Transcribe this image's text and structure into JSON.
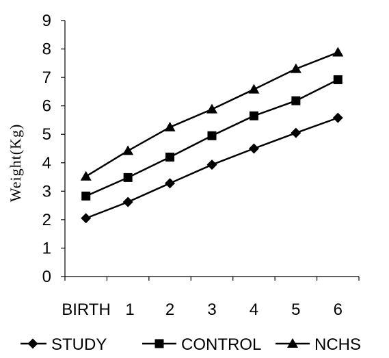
{
  "chart_data": {
    "type": "line",
    "title": "",
    "xlabel": "",
    "ylabel": "Weight(Kg)",
    "categories": [
      "BIRTH",
      "1",
      "2",
      "3",
      "4",
      "5",
      "6"
    ],
    "ylim": [
      0,
      9
    ],
    "yticks": [
      "0",
      "1",
      "2",
      "3",
      "4",
      "5",
      "6",
      "7",
      "8",
      "9"
    ],
    "grid": false,
    "legend_position": "bottom",
    "series": [
      {
        "name": "STUDY",
        "marker": "diamond",
        "values": [
          2.05,
          2.62,
          3.28,
          3.93,
          4.5,
          5.05,
          5.58
        ]
      },
      {
        "name": "CONTROL",
        "marker": "square",
        "values": [
          2.83,
          3.48,
          4.2,
          4.95,
          5.65,
          6.18,
          6.92
        ]
      },
      {
        "name": "NCHS",
        "marker": "triangle",
        "values": [
          3.52,
          4.42,
          5.25,
          5.88,
          6.58,
          7.3,
          7.88
        ]
      }
    ],
    "colors": {
      "line": "#000000",
      "axis": "#000000"
    }
  }
}
